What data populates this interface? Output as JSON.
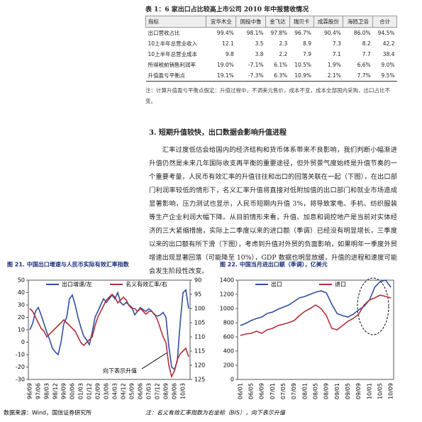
{
  "table": {
    "title": "表 1：6 家出口占比较高上市公司 2010 年中报营收情况",
    "headers": [
      "指标",
      "宜华木业",
      "国投中鲁",
      "金飞达",
      "瑞贝卡",
      "成霖股份",
      "海鸥卫浴",
      "合计"
    ],
    "rows": [
      [
        "出口营收占比",
        "99.4%",
        "98.1%",
        "97.8%",
        "96.7%",
        "90.4%",
        "86.0%",
        "94.5%"
      ],
      [
        "10上半年总营业收入",
        "12.1",
        "3.5",
        "2.3",
        "8.9",
        "7.3",
        "8.2",
        "42.2"
      ],
      [
        "10上半年总营业成本",
        "9.8",
        "3.8",
        "2.2",
        "7.9",
        "7.1",
        "7.7",
        "38.4"
      ],
      [
        "所得税前销售利润率",
        "19.0%",
        "-7.1%",
        "6.1%",
        "10.5%",
        "1.9%",
        "6.6%",
        "9.0%"
      ],
      [
        "升值盈亏平衡点",
        "19.1%",
        "-7.3%",
        "6.3%",
        "10.9%",
        "2.1%",
        "7.7%",
        "9.5%"
      ]
    ],
    "note": "注：计算升值盈亏平衡点假定：升值过程中，不调美元售价，成本不变，成本全部国内采购，出口占比不变。"
  },
  "section": {
    "heading": "3.   短期升值较快，出口数据会影响升值进程",
    "body": "汇率过度低估会给国内的经济结构和货币体系带来不良影响，我们判断小幅渐进升值仍然是未来几年国际收支再平衡的重要途径，但外贸景气度始终是升值节奏的一个重要考量，人民币有效汇率的升值往往和出口的回落关联在一起（下图），在出口部门利润率较低的情形下，名义汇率升值将直接对低附加值的出口部门和就业市场造成显著影响，压力测试也显示，人民币短期内升值 3%，将导致家电、手机、纺织服装等生产企业利润大幅下降。从目前情形来看，升值、加息和调控地产是当前对实体经济的三大紧缩措施，实际上二季度以来的进口额（季调）已经没有明显增长，三季度以来的出口额有所下滑（下图），考虑到升值对外贸的负面影响，如果明年一季度外贸增速出现显著回落（可能降至 10%），GDP 数据也明显放缓，升值的进程和速度可能会发生阶段性改变。"
  },
  "chart_data": [
    {
      "type": "line",
      "title": "图 21. 中国出口增速与人民币实际有效汇率指数",
      "annotation": "向下表示升值",
      "categories": [
        "96/09",
        null,
        null,
        "97/06",
        null,
        null,
        "98/03",
        null,
        null,
        "98/12",
        null,
        null,
        "99/09",
        null,
        null,
        "00/06",
        null,
        null,
        "01/03",
        null,
        null,
        "01/12",
        null,
        null,
        "02/09",
        null,
        null,
        "03/06",
        null,
        null,
        "04/03",
        null,
        null,
        "04/12",
        null,
        null,
        "05/09",
        null,
        null,
        "06/06",
        null,
        null,
        "07/03",
        null,
        null,
        "07/12",
        null,
        null,
        "08/09",
        null,
        null,
        "09/06",
        null,
        null,
        "10/03",
        null,
        null
      ],
      "series": [
        {
          "name": "出口增速/左",
          "color": "#2f4f9e",
          "values": [
            10,
            15,
            25,
            28,
            22,
            15,
            8,
            2,
            -5,
            -8,
            -10,
            0,
            15,
            20,
            35,
            38,
            30,
            20,
            12,
            5,
            2,
            -2,
            8,
            20,
            25,
            30,
            35,
            32,
            35,
            38,
            35,
            40,
            32,
            30,
            32,
            30,
            28,
            22,
            25,
            28,
            26,
            25,
            27,
            25,
            22,
            21,
            22,
            24,
            20,
            -3,
            -20,
            -22,
            -15,
            15,
            40,
            42,
            27
          ]
        },
        {
          "name": "名义有效汇率/右",
          "color": "#b0303a",
          "axis": "y2",
          "values": [
            100,
            101,
            103,
            105,
            107,
            108,
            110,
            109,
            108,
            107,
            106,
            105,
            104,
            105,
            106,
            107,
            108,
            110,
            112,
            113,
            112,
            111,
            110,
            106,
            103,
            101,
            99,
            97,
            96,
            95,
            96,
            98,
            97,
            96,
            97,
            99,
            100,
            100,
            101,
            100,
            101,
            102,
            101,
            101,
            102,
            104,
            107,
            110,
            112,
            120,
            124,
            122,
            118,
            116,
            115,
            114,
            117
          ]
        }
      ],
      "ylim": [
        -30,
        50
      ],
      "yticks": [
        -30,
        -20,
        -10,
        0,
        10,
        20,
        30,
        40,
        50
      ],
      "y2lim": [
        125,
        90
      ],
      "y2ticks": [
        90,
        95,
        100,
        105,
        110,
        115,
        120,
        125
      ]
    },
    {
      "type": "line",
      "title": "图 22. 中国当月进出口额（季调），亿美元",
      "categories": [
        "06/01",
        null,
        "06/05",
        null,
        "06/09",
        null,
        "07/01",
        null,
        "07/05",
        null,
        "07/09",
        null,
        "08/01",
        null,
        "08/05",
        null,
        "08/09",
        null,
        "09/01",
        null,
        "09/05",
        null,
        "09/09",
        null,
        "10/01",
        null,
        "10/05",
        null,
        "10/09"
      ],
      "series": [
        {
          "name": "出口",
          "color": "#2f4f9e",
          "values": [
            760,
            790,
            830,
            860,
            880,
            930,
            950,
            990,
            1020,
            1050,
            1100,
            1150,
            1170,
            1200,
            1230,
            1250,
            1220,
            1060,
            930,
            900,
            880,
            920,
            980,
            1030,
            1120,
            1300,
            1380,
            1400,
            1300
          ]
        },
        {
          "name": "进口",
          "color": "#b0303a",
          "values": [
            620,
            640,
            650,
            680,
            650,
            700,
            720,
            760,
            780,
            800,
            830,
            900,
            960,
            1000,
            1050,
            1000,
            900,
            720,
            700,
            760,
            820,
            860,
            920,
            1050,
            1120,
            1150,
            1190,
            1170,
            1150
          ]
        }
      ],
      "ylim": [
        0,
        1400
      ],
      "yticks": [
        0,
        200,
        400,
        600,
        800,
        1000,
        1200,
        1400
      ]
    }
  ],
  "footer": {
    "source": "数据来源：Wind，国信证券研究所",
    "note": "注：名义有效汇率指数为右坐标（BIS），向下表示升值"
  }
}
